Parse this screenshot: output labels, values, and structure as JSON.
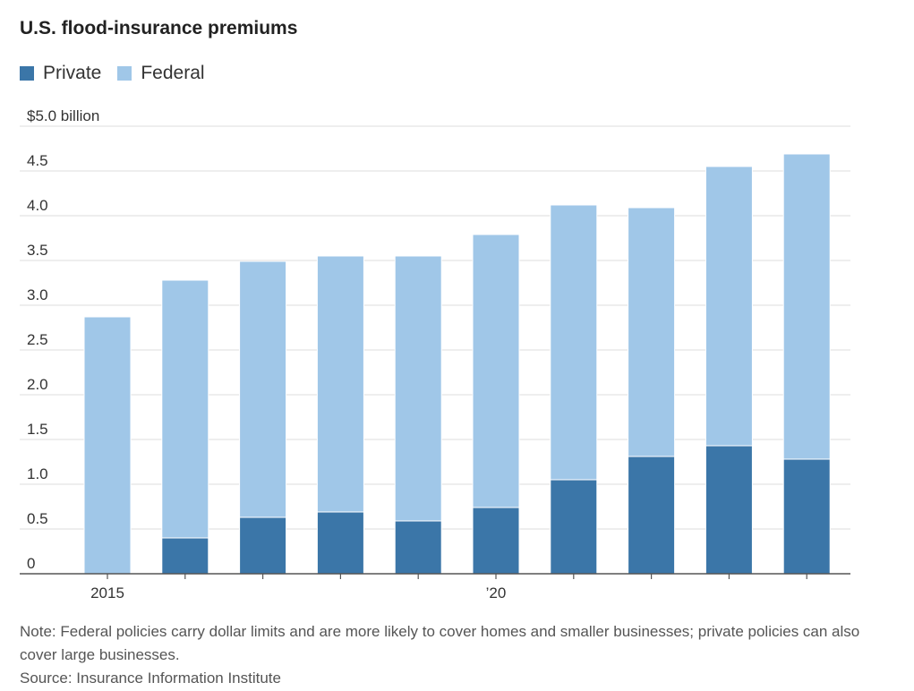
{
  "title": "U.S. flood-insurance premiums",
  "legend": [
    {
      "label": "Private",
      "color": "#3b76a8"
    },
    {
      "label": "Federal",
      "color": "#a0c7e8"
    }
  ],
  "chart_data": {
    "type": "bar",
    "stacked": true,
    "title": "U.S. flood-insurance premiums",
    "categories": [
      "2015",
      "2016",
      "2017",
      "2018",
      "2019",
      "2020",
      "2021",
      "2022",
      "2023",
      "2024"
    ],
    "x_tick_labels": [
      {
        "category": "2015",
        "label": "2015"
      },
      {
        "category": "2020",
        "label": "’20"
      }
    ],
    "series": [
      {
        "name": "Private",
        "color": "#3b76a8",
        "values": [
          0.0,
          0.4,
          0.63,
          0.69,
          0.59,
          0.74,
          1.05,
          1.31,
          1.43,
          1.28
        ]
      },
      {
        "name": "Federal",
        "color": "#a0c7e8",
        "values": [
          2.87,
          2.88,
          2.86,
          2.86,
          2.96,
          3.05,
          3.07,
          2.78,
          3.12,
          3.41
        ]
      }
    ],
    "ylim": [
      0,
      5.0
    ],
    "y_ticks": [
      {
        "value": 0,
        "label": "0"
      },
      {
        "value": 0.5,
        "label": "0.5"
      },
      {
        "value": 1.0,
        "label": "1.0"
      },
      {
        "value": 1.5,
        "label": "1.5"
      },
      {
        "value": 2.0,
        "label": "2.0"
      },
      {
        "value": 2.5,
        "label": "2.5"
      },
      {
        "value": 3.0,
        "label": "3.0"
      },
      {
        "value": 3.5,
        "label": "3.5"
      },
      {
        "value": 4.0,
        "label": "4.0"
      },
      {
        "value": 4.5,
        "label": "4.5"
      },
      {
        "value": 5.0,
        "label": "$5.0 billion"
      }
    ],
    "grid": true,
    "xlabel": "",
    "ylabel": ""
  },
  "notes": {
    "note": "Note: Federal policies carry dollar limits and are more likely to cover homes and smaller businesses; private policies can also cover large businesses.",
    "source": "Source: Insurance Information Institute"
  },
  "colors": {
    "grid": "#e3e3e3",
    "axis": "#555555",
    "tick_text": "#333333"
  }
}
